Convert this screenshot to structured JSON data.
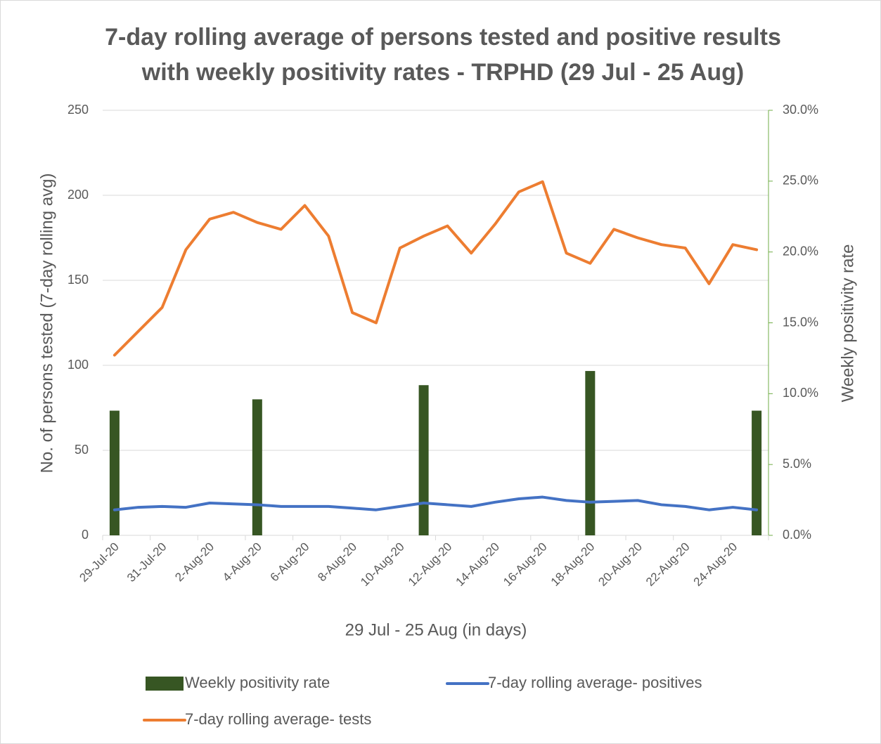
{
  "chart_data": {
    "type": "combo",
    "title": "7-day rolling average of persons tested and positive results with weekly positivity rates - TRPHD (29 Jul - 25 Aug)",
    "x_label": "29 Jul - 25 Aug (in days)",
    "y_label": "No. of persons tested (7-day rolling avg)",
    "y2_label": "Weekly positivity rate",
    "categories": [
      "29-Jul-20",
      null,
      "31-Jul-20",
      null,
      "2-Aug-20",
      null,
      "4-Aug-20",
      null,
      "6-Aug-20",
      null,
      "8-Aug-20",
      null,
      "10-Aug-20",
      null,
      "12-Aug-20",
      null,
      "14-Aug-20",
      null,
      "16-Aug-20",
      null,
      "18-Aug-20",
      null,
      "20-Aug-20",
      null,
      "22-Aug-20",
      null,
      "24-Aug-20",
      null
    ],
    "ylim": [
      0,
      250
    ],
    "yticks": [
      0,
      50,
      100,
      150,
      200,
      250
    ],
    "y2lim": [
      0,
      30
    ],
    "y2ticks": [
      {
        "value": 0,
        "label": "0.0%"
      },
      {
        "value": 5,
        "label": "5.0%"
      },
      {
        "value": 10,
        "label": "10.0%"
      },
      {
        "value": 15,
        "label": "15.0%"
      },
      {
        "value": 20,
        "label": "20.0%"
      },
      {
        "value": 25,
        "label": "25.0%"
      },
      {
        "value": 30,
        "label": "30.0%"
      }
    ],
    "grid": true,
    "legend": "bottom",
    "series": [
      {
        "name": "Weekly positivity rate",
        "type": "bar",
        "axis": "y2",
        "color": "#375623",
        "values": [
          8.8,
          null,
          null,
          null,
          null,
          null,
          9.6,
          null,
          null,
          null,
          null,
          null,
          null,
          10.6,
          null,
          null,
          null,
          null,
          null,
          null,
          11.6,
          null,
          null,
          null,
          null,
          null,
          null,
          8.8
        ]
      },
      {
        "name": "7-day rolling average- positives",
        "type": "line",
        "color": "#4472c4",
        "values": [
          15,
          16.5,
          17,
          16.5,
          19,
          18.5,
          18,
          17,
          17,
          17,
          16,
          15,
          17,
          19,
          18,
          17,
          19.5,
          21.5,
          22.5,
          20.5,
          19.5,
          20,
          20.5,
          18,
          17,
          15,
          16.5,
          15
        ]
      },
      {
        "name": "7-day rolling average- tests",
        "type": "line",
        "color": "#ed7d31",
        "values": [
          106,
          120,
          134,
          168,
          186,
          190,
          184,
          180,
          194,
          176,
          131,
          125,
          169,
          176,
          182,
          166,
          183,
          202,
          208,
          166,
          160,
          180,
          175,
          171,
          169,
          148,
          171,
          168
        ]
      }
    ]
  }
}
